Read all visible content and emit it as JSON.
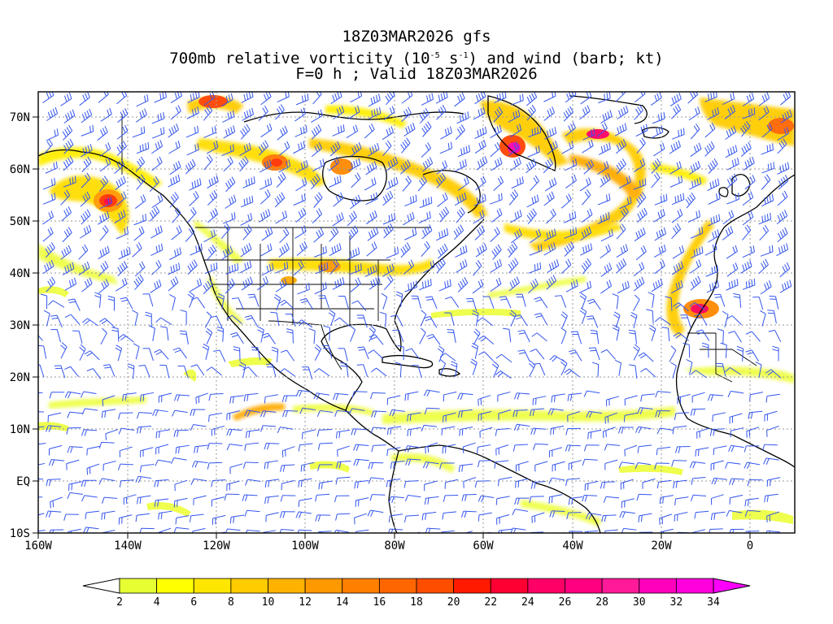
{
  "header": {
    "line1": "18Z03MAR2026 gfs",
    "line2_pre": "700mb relative vorticity (10",
    "line2_sup1": "-5",
    "line2_mid": " s",
    "line2_sup2": "-1",
    "line2_post": ") and wind (barb; kt)",
    "line3": "F=0 h ; Valid 18Z03MAR2026"
  },
  "map": {
    "projection": "latitude-longitude",
    "lon_range": [
      -160,
      10
    ],
    "lat_range": [
      -10,
      75
    ],
    "lon_labels": [
      "160W",
      "140W",
      "120W",
      "100W",
      "80W",
      "60W",
      "40W",
      "20W",
      "0"
    ],
    "lat_labels": [
      "70N",
      "60N",
      "50N",
      "40N",
      "30N",
      "20N",
      "10N",
      "EQ",
      "10S"
    ],
    "barb_color": "#3355ee",
    "graticule_style": "dotted gray"
  },
  "colorbar": {
    "levels": [
      "2",
      "4",
      "6",
      "8",
      "10",
      "12",
      "14",
      "16",
      "18",
      "20",
      "22",
      "24",
      "26",
      "28",
      "30",
      "32",
      "34"
    ],
    "colors": [
      "#e6ff33",
      "#ffff00",
      "#ffe600",
      "#ffcc00",
      "#ffb300",
      "#ff9900",
      "#ff8000",
      "#ff6600",
      "#ff4d00",
      "#ff1a00",
      "#ff0033",
      "#ff0066",
      "#ff0080",
      "#ff1a99",
      "#ff00bb",
      "#ff00dd"
    ],
    "under_color": "#ffffff",
    "over_color": "#ff00ff"
  }
}
